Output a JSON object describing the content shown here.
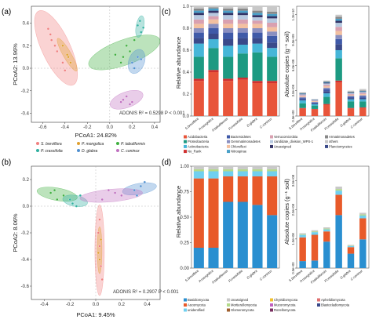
{
  "panel_labels": {
    "a": "(a)",
    "b": "(b)",
    "c": "(c)",
    "d": "(d)"
  },
  "colors": {
    "s_breviflora": "#f08080",
    "p_mongolica": "#e0a030",
    "p_tabuliformis": "#40b040",
    "p_crassifolia": "#30b0a0",
    "d_glabra": "#5090d0",
    "c_coninux": "#c070c0"
  },
  "panel_a": {
    "x_label": "PCoA1: 24.82%",
    "y_label": "PCoA2: 13.96%",
    "x_ticks": [
      "-0.6",
      "-0.4",
      "-0.2",
      "0.0",
      "0.2",
      "0.4"
    ],
    "y_ticks": [
      "0.4",
      "0.2",
      "0.0",
      "-0.2",
      "-0.4"
    ],
    "adonis": "ADONIS  R² = 0.5298   P < 0.001"
  },
  "panel_b": {
    "x_label": "PCoA1: 9.45%",
    "y_label": "PCoA2: 8.06%",
    "x_ticks": [
      "-0.4",
      "-0.2",
      "0.0",
      "0.2",
      "0.4"
    ],
    "y_ticks": [
      "0.2",
      "0.0",
      "-0.2",
      "-0.4",
      "-0.6"
    ],
    "adonis": "ADONIS  R² = 0.2907   P < 0.001"
  },
  "legend_ab": [
    {
      "label": "S. breviflora",
      "color": "#f08080"
    },
    {
      "label": "P. mongolica",
      "color": "#e0a030"
    },
    {
      "label": "P. tabuliformis",
      "color": "#40b040"
    },
    {
      "label": "P. crassifolia",
      "color": "#30b0a0"
    },
    {
      "label": "D. glabra",
      "color": "#5090d0"
    },
    {
      "label": "C. coninux",
      "color": "#c070c0"
    }
  ],
  "species": [
    "S.breviflora",
    "P.mongolica",
    "P.tabuliformis",
    "P.crassifolia",
    "D.glabra",
    "C.coninux"
  ],
  "panel_c": {
    "rel_ylabel": "Relative abundance",
    "abs_ylabel": "Absolute copies (g⁻¹ soil)",
    "rel_ticks": [
      "0.0",
      "0.2",
      "0.4",
      "0.6",
      "0.8",
      "1.0"
    ],
    "abs_ticks": [
      "0.0e+00",
      "3.0e+09",
      "6.0e+09",
      "9.0e+09",
      "1.2e+10"
    ],
    "legend": [
      {
        "label": "Acidobacteria",
        "color": "#e8553a"
      },
      {
        "label": "Bacteroidetes",
        "color": "#3f5aa8"
      },
      {
        "label": "Verrucomicrobia",
        "color": "#d9a0b0"
      },
      {
        "label": "Armatimonadetes",
        "color": "#888888"
      },
      {
        "label": "Proteobacteria",
        "color": "#1d9a82"
      },
      {
        "label": "Gemmatimonadetes",
        "color": "#8a8fc0"
      },
      {
        "label": "candidate_division_WPS-1",
        "color": "#b7c9e0"
      },
      {
        "label": "others",
        "color": "#c8c8c8"
      },
      {
        "label": "Actinobacteria",
        "color": "#46b6d8"
      },
      {
        "label": "Chloroflexi",
        "color": "#f3c0a0"
      },
      {
        "label": "Unassigned",
        "color": "#333366"
      },
      {
        "label": "Planctomycetes",
        "color": "#3a4a8a"
      },
      {
        "label": "No_Rank",
        "color": "#d03030"
      },
      {
        "label": "Nitrospirae",
        "color": "#4aa0c8"
      }
    ]
  },
  "panel_d": {
    "rel_ylabel": "Relative abundance",
    "abs_ylabel": "Absolute copies (g⁻¹ soil)",
    "rel_ticks": [
      "0.00",
      "0.25",
      "0.50",
      "0.75",
      "1.00"
    ],
    "abs_ticks": [
      "0.0e+00",
      "1.0e+08",
      "2.0e+08",
      "3.0e+08"
    ],
    "legend": [
      {
        "label": "Basidiomycota",
        "color": "#2a8fd0"
      },
      {
        "label": "Unassigned",
        "color": "#c8c8c8"
      },
      {
        "label": "Chytridiomycota",
        "color": "#f0c030"
      },
      {
        "label": "Aphelidiomycota",
        "color": "#e07070"
      },
      {
        "label": "Ascomycota",
        "color": "#e85a2a"
      },
      {
        "label": "Mortierellomycota",
        "color": "#b3d98a"
      },
      {
        "label": "Mucoromycota",
        "color": "#c060c0"
      },
      {
        "label": "Blastocladiomycota",
        "color": "#3a4a8a"
      },
      {
        "label": "unidentified",
        "color": "#70d0f0"
      },
      {
        "label": "Glomeromycota",
        "color": "#a06030"
      },
      {
        "label": "Rozellomycota",
        "color": "#7a3060"
      }
    ]
  },
  "chart_data": [
    {
      "type": "scatter",
      "title": "",
      "xlabel": "PCoA1: 24.82%",
      "ylabel": "PCoA2: 13.96%",
      "xlim": [
        -0.7,
        0.45
      ],
      "ylim": [
        -0.48,
        0.55
      ],
      "series": [
        {
          "name": "S. breviflora",
          "points": [
            [
              -0.55,
              0.35
            ],
            [
              -0.52,
              0.25
            ],
            [
              -0.47,
              0.15
            ],
            [
              -0.42,
              0.05
            ],
            [
              -0.4,
              -0.02
            ],
            [
              -0.53,
              0.3
            ],
            [
              -0.49,
              0.2
            ]
          ]
        },
        {
          "name": "P. mongolica",
          "points": [
            [
              -0.42,
              0.2
            ],
            [
              -0.38,
              0.12
            ],
            [
              -0.35,
              0.05
            ],
            [
              -0.37,
              0.1
            ]
          ]
        },
        {
          "name": "P. tabuliformis",
          "points": [
            [
              0.05,
              0.12
            ],
            [
              0.12,
              0.1
            ],
            [
              0.18,
              0.15
            ],
            [
              0.22,
              0.25
            ],
            [
              0.1,
              0.05
            ],
            [
              0.15,
              0.2
            ]
          ]
        },
        {
          "name": "P. crassifolia",
          "points": [
            [
              0.25,
              0.38
            ],
            [
              0.28,
              0.32
            ],
            [
              0.27,
              0.42
            ],
            [
              0.3,
              0.36
            ]
          ]
        },
        {
          "name": "D. glabra",
          "points": [
            [
              0.2,
              0.05
            ],
            [
              0.25,
              0.1
            ],
            [
              0.22,
              0.0
            ],
            [
              0.28,
              0.08
            ]
          ]
        },
        {
          "name": "C. coninux",
          "points": [
            [
              0.1,
              -0.3
            ],
            [
              0.15,
              -0.25
            ],
            [
              0.18,
              -0.32
            ],
            [
              0.12,
              -0.28
            ],
            [
              0.2,
              -0.3
            ]
          ]
        }
      ]
    },
    {
      "type": "scatter",
      "title": "",
      "xlabel": "PCoA1: 9.45%",
      "ylabel": "PCoA2: 8.06%",
      "xlim": [
        -0.5,
        0.5
      ],
      "ylim": [
        -0.7,
        0.3
      ],
      "series": [
        {
          "name": "S. breviflora",
          "points": [
            [
              0.02,
              -0.2
            ],
            [
              0.03,
              -0.3
            ],
            [
              0.04,
              -0.45
            ],
            [
              0.05,
              -0.55
            ],
            [
              0.03,
              -0.1
            ]
          ]
        },
        {
          "name": "P. mongolica",
          "points": [
            [
              0.02,
              -0.35
            ],
            [
              0.03,
              -0.4
            ],
            [
              0.04,
              -0.25
            ]
          ]
        },
        {
          "name": "P. tabuliformis",
          "points": [
            [
              -0.35,
              0.1
            ],
            [
              -0.3,
              0.05
            ],
            [
              -0.25,
              0.08
            ],
            [
              -0.32,
              0.12
            ]
          ]
        },
        {
          "name": "P. crassifolia",
          "points": [
            [
              -0.2,
              0.05
            ],
            [
              -0.15,
              0.0
            ],
            [
              -0.12,
              0.08
            ],
            [
              -0.18,
              0.02
            ]
          ]
        },
        {
          "name": "D. glabra",
          "points": [
            [
              0.3,
              0.12
            ],
            [
              0.35,
              0.15
            ],
            [
              0.32,
              0.08
            ],
            [
              0.38,
              0.18
            ]
          ]
        },
        {
          "name": "C. coninux",
          "points": [
            [
              0.05,
              0.05
            ],
            [
              0.15,
              0.1
            ],
            [
              0.2,
              0.08
            ],
            [
              0.1,
              0.12
            ]
          ]
        }
      ]
    },
    {
      "type": "bar",
      "title": "",
      "ylabel": "Relative abundance",
      "categories": [
        "S.breviflora",
        "P.mongolica",
        "P.tabuliformis",
        "P.crassifolia",
        "D.glabra",
        "C.coninux"
      ],
      "stacked": true,
      "series": [
        {
          "name": "Acidobacteria",
          "values": [
            0.32,
            0.4,
            0.32,
            0.33,
            0.3,
            0.3
          ]
        },
        {
          "name": "No_Rank",
          "values": [
            0.02,
            0.02,
            0.02,
            0.02,
            0.02,
            0.02
          ]
        },
        {
          "name": "Proteobacteria",
          "values": [
            0.2,
            0.2,
            0.2,
            0.22,
            0.26,
            0.22
          ]
        },
        {
          "name": "Actinobacteria",
          "values": [
            0.12,
            0.08,
            0.1,
            0.08,
            0.08,
            0.08
          ]
        },
        {
          "name": "Planctomycetes",
          "values": [
            0.05,
            0.05,
            0.06,
            0.06,
            0.05,
            0.05
          ]
        },
        {
          "name": "Bacteroidetes",
          "values": [
            0.05,
            0.05,
            0.06,
            0.05,
            0.05,
            0.06
          ]
        },
        {
          "name": "Gemmatimonadetes",
          "values": [
            0.04,
            0.04,
            0.04,
            0.04,
            0.04,
            0.04
          ]
        },
        {
          "name": "Chloroflexi",
          "values": [
            0.04,
            0.04,
            0.04,
            0.04,
            0.04,
            0.04
          ]
        },
        {
          "name": "Verrucomicrobia",
          "values": [
            0.04,
            0.03,
            0.04,
            0.04,
            0.03,
            0.04
          ]
        },
        {
          "name": "candidate_division_WPS-1",
          "values": [
            0.04,
            0.03,
            0.04,
            0.04,
            0.03,
            0.04
          ]
        },
        {
          "name": "Unassigned",
          "values": [
            0.02,
            0.02,
            0.02,
            0.02,
            0.02,
            0.02
          ]
        },
        {
          "name": "Nitrospirae",
          "values": [
            0.02,
            0.02,
            0.02,
            0.02,
            0.02,
            0.02
          ]
        },
        {
          "name": "Armatimonadetes",
          "values": [
            0.02,
            0.01,
            0.02,
            0.02,
            0.02,
            0.02
          ]
        },
        {
          "name": "others",
          "values": [
            0.02,
            0.01,
            0.02,
            0.02,
            0.04,
            0.05
          ]
        }
      ]
    },
    {
      "type": "bar",
      "title": "",
      "ylabel": "Absolute copies (g⁻¹ soil)",
      "categories": [
        "S.breviflora",
        "P.mongolica",
        "P.tabuliformis",
        "P.crassifolia",
        "D.glabra",
        "C.coninux"
      ],
      "stacked": true,
      "total_values": [
        2800000000.0,
        2000000000.0,
        4200000000.0,
        12000000000.0,
        3000000000.0,
        3200000000.0
      ]
    },
    {
      "type": "bar",
      "title": "",
      "ylabel": "Relative abundance",
      "categories": [
        "S.breviflora",
        "P.mongolica",
        "P.tabuliformis",
        "P.crassifolia",
        "D.glabra",
        "C.coninux"
      ],
      "stacked": true,
      "series": [
        {
          "name": "Basidiomycota",
          "values": [
            0.2,
            0.2,
            0.65,
            0.65,
            0.62,
            0.52
          ]
        },
        {
          "name": "Ascomycota",
          "values": [
            0.68,
            0.68,
            0.25,
            0.25,
            0.28,
            0.38
          ]
        },
        {
          "name": "unidentified",
          "values": [
            0.07,
            0.07,
            0.05,
            0.05,
            0.05,
            0.05
          ]
        },
        {
          "name": "Mortierellomycota",
          "values": [
            0.02,
            0.02,
            0.02,
            0.02,
            0.02,
            0.02
          ]
        },
        {
          "name": "Unassigned",
          "values": [
            0.03,
            0.03,
            0.03,
            0.03,
            0.03,
            0.03
          ]
        }
      ]
    },
    {
      "type": "bar",
      "title": "",
      "ylabel": "Absolute copies (g⁻¹ soil)",
      "categories": [
        "S.breviflora",
        "P.mongolica",
        "P.tabuliformis",
        "P.crassifolia",
        "D.glabra",
        "C.coninux"
      ],
      "stacked": true,
      "total_values": [
        120000000.0,
        130000000.0,
        140000000.0,
        280000000.0,
        80000000.0,
        190000000.0
      ]
    }
  ]
}
